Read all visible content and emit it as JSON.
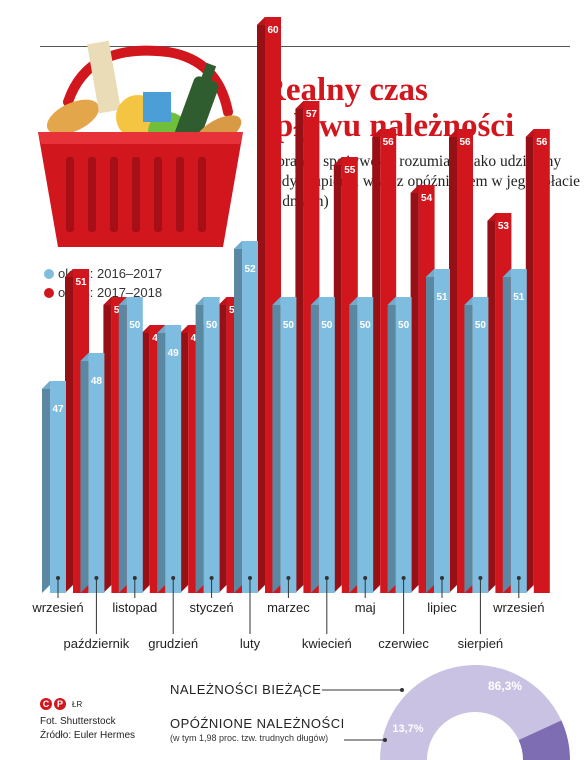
{
  "title_line1": "Realny czas",
  "title_line2": "spływu należności",
  "subtitle": "w branży spożywczej rozumiany jako udzielony kredyt kupiecki wraz z opóźnieniem w jego spłacie (w dniach)",
  "legend": [
    {
      "label": "okres: 2016–2017",
      "color": "#7fbde0"
    },
    {
      "label": "okres: 2017–2018",
      "color": "#d2161e"
    }
  ],
  "chart_data": [
    {
      "type": "bar",
      "title": "Realny czas spływu należności",
      "categories": [
        "wrzesień",
        "październik",
        "listopad",
        "grudzień",
        "styczeń",
        "luty",
        "marzec",
        "kwiecień",
        "maj",
        "czerwiec",
        "lipiec",
        "sierpień",
        "wrzesień"
      ],
      "series": [
        {
          "name": "okres: 2016–2017",
          "color": "#7fbde0",
          "values": [
            47,
            48,
            50,
            49,
            50,
            52,
            50,
            50,
            50,
            50,
            51,
            50,
            51
          ]
        },
        {
          "name": "okres: 2017–2018",
          "color": "#d2161e",
          "values": [
            51,
            50,
            49,
            49,
            50,
            60,
            57,
            55,
            56,
            54,
            56,
            53,
            56
          ]
        }
      ]
    },
    {
      "type": "pie",
      "labels": [
        "NALEŻNOŚCI BIEŻĄCE",
        "OPÓŹNIONE NALEŻNOŚCI"
      ],
      "values": [
        86.3,
        13.7
      ],
      "value_labels": [
        "86,3%",
        "13,7%"
      ],
      "colors": [
        "#c9c2e3",
        "#7f6db3"
      ],
      "note": "(w tym 1,98 proc. tzw. trudnych długów)"
    }
  ],
  "credits": {
    "symbols": "©℗",
    "author": "ŁR",
    "photo": "Fot. Shutterstock",
    "source": "Źródło: Euler Hermes"
  }
}
